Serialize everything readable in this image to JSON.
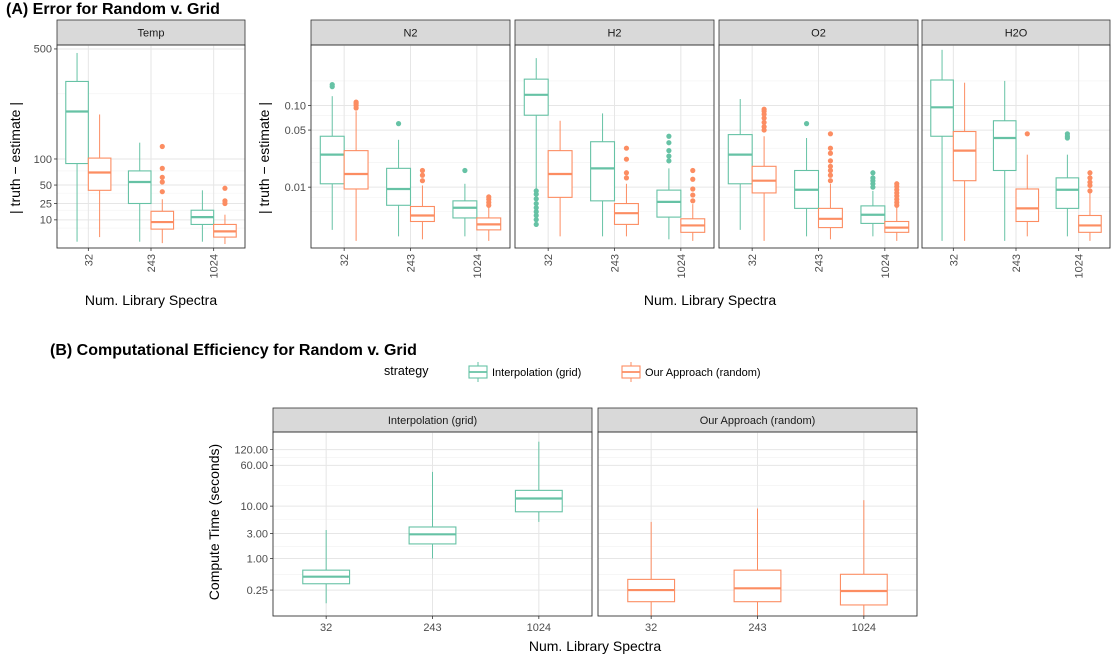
{
  "colors": {
    "grid": "#66c2a5",
    "random": "#fc8d62"
  },
  "sectionA": {
    "title": "(A) Error for Random v. Grid",
    "ylabel": "| truth − estimate |",
    "xlabel": "Num. Library Spectra"
  },
  "sectionB": {
    "title": "(B) Computational Efficiency for Random v. Grid",
    "ylabel": "Compute Time (seconds)",
    "xlabel": "Num. Library Spectra"
  },
  "legend": {
    "title": "strategy",
    "items": [
      {
        "label": "Interpolation (grid)"
      },
      {
        "label": "Our Approach (random)"
      }
    ]
  },
  "chart_data": [
    {
      "type": "box",
      "title": "(A) Error for Random v. Grid",
      "facet": "Temp",
      "ylabel": "| truth − estimate |",
      "xlabel": "Num. Library Spectra",
      "y_scale": "sqrt",
      "ylim": [
        0,
        520
      ],
      "y_ticks": [
        {
          "v": 10,
          "label": "10"
        },
        {
          "v": 25,
          "label": "25"
        },
        {
          "v": 50,
          "label": "50"
        },
        {
          "v": 100,
          "label": "100"
        },
        {
          "v": 500,
          "label": "500"
        }
      ],
      "categories": [
        "32",
        "243",
        "1024"
      ],
      "series": [
        {
          "name": "Interpolation (grid)",
          "boxes": [
            {
              "min": 0.5,
              "q1": 90,
              "median": 235,
              "q3": 350,
              "max": 480,
              "outliers": []
            },
            {
              "min": 0.5,
              "q1": 25,
              "median": 55,
              "q3": 75,
              "max": 140,
              "outliers": []
            },
            {
              "min": 0.5,
              "q1": 7,
              "median": 12,
              "q3": 18,
              "max": 42,
              "outliers": []
            }
          ]
        },
        {
          "name": "Our Approach (random)",
          "boxes": [
            {
              "min": 1.5,
              "q1": 42,
              "median": 72,
              "q3": 102,
              "max": 225,
              "outliers": []
            },
            {
              "min": 0.3,
              "q1": 4.5,
              "median": 8.5,
              "q3": 17,
              "max": 30,
              "outliers": [
                40,
                55,
                63,
                80,
                130
              ]
            },
            {
              "min": 0.2,
              "q1": 1.5,
              "median": 3.5,
              "q3": 7,
              "max": 14,
              "outliers": [
                25,
                28,
                45
              ]
            }
          ]
        }
      ]
    },
    {
      "type": "box",
      "facet": "N2",
      "ylabel": "| truth − estimate |",
      "xlabel": "Num. Library Spectra",
      "y_scale": "log",
      "ylim": [
        0.0018,
        0.55
      ],
      "y_ticks": [
        {
          "v": 0.01,
          "label": "0.01"
        },
        {
          "v": 0.05,
          "label": "0.05"
        },
        {
          "v": 0.1,
          "label": "0.10"
        }
      ],
      "categories": [
        "32",
        "243",
        "1024"
      ],
      "series": [
        {
          "name": "Interpolation (grid)",
          "boxes": [
            {
              "min": 0.003,
              "q1": 0.011,
              "median": 0.025,
              "q3": 0.042,
              "max": 0.13,
              "outliers": [
                0.17,
                0.18
              ]
            },
            {
              "min": 0.0025,
              "q1": 0.006,
              "median": 0.0095,
              "q3": 0.017,
              "max": 0.038,
              "outliers": [
                0.06
              ]
            },
            {
              "min": 0.0025,
              "q1": 0.0042,
              "median": 0.0056,
              "q3": 0.0068,
              "max": 0.011,
              "outliers": [
                0.016
              ]
            }
          ]
        },
        {
          "name": "Our Approach (random)",
          "boxes": [
            {
              "min": 0.0022,
              "q1": 0.0095,
              "median": 0.0145,
              "q3": 0.028,
              "max": 0.085,
              "outliers": [
                0.093,
                0.1,
                0.105,
                0.11
              ]
            },
            {
              "min": 0.0023,
              "q1": 0.0038,
              "median": 0.0045,
              "q3": 0.0058,
              "max": 0.0105,
              "outliers": [
                0.012,
                0.014,
                0.016
              ]
            },
            {
              "min": 0.0022,
              "q1": 0.003,
              "median": 0.0035,
              "q3": 0.0042,
              "max": 0.0058,
              "outliers": [
                0.006,
                0.0065,
                0.0071,
                0.0076
              ]
            }
          ]
        }
      ]
    },
    {
      "type": "box",
      "facet": "H2",
      "ylabel": "| truth − estimate |",
      "xlabel": "Num. Library Spectra",
      "y_scale": "log",
      "ylim": [
        0.0018,
        0.55
      ],
      "y_ticks": [
        {
          "v": 0.01,
          "label": "0.01"
        },
        {
          "v": 0.05,
          "label": "0.05"
        },
        {
          "v": 0.1,
          "label": "0.10"
        }
      ],
      "categories": [
        "32",
        "243",
        "1024"
      ],
      "series": [
        {
          "name": "Interpolation (grid)",
          "boxes": [
            {
              "min": 0.008,
              "q1": 0.076,
              "median": 0.135,
              "q3": 0.21,
              "max": 0.38,
              "outliers": [
                0.0035,
                0.004,
                0.0045,
                0.005,
                0.0056,
                0.0063,
                0.0072,
                0.0082,
                0.009
              ]
            },
            {
              "min": 0.0025,
              "q1": 0.0068,
              "median": 0.017,
              "q3": 0.036,
              "max": 0.08,
              "outliers": []
            },
            {
              "min": 0.0023,
              "q1": 0.0043,
              "median": 0.0066,
              "q3": 0.0092,
              "max": 0.017,
              "outliers": [
                0.021,
                0.024,
                0.028,
                0.035,
                0.042
              ]
            }
          ]
        },
        {
          "name": "Our Approach (random)",
          "boxes": [
            {
              "min": 0.0025,
              "q1": 0.0075,
              "median": 0.0145,
              "q3": 0.028,
              "max": 0.065,
              "outliers": []
            },
            {
              "min": 0.0025,
              "q1": 0.0035,
              "median": 0.0048,
              "q3": 0.0063,
              "max": 0.011,
              "outliers": [
                0.013,
                0.015,
                0.022,
                0.03
              ]
            },
            {
              "min": 0.0022,
              "q1": 0.0028,
              "median": 0.0034,
              "q3": 0.0041,
              "max": 0.0062,
              "outliers": [
                0.0068,
                0.008,
                0.0095,
                0.0125,
                0.016
              ]
            }
          ]
        }
      ]
    },
    {
      "type": "box",
      "facet": "O2",
      "ylabel": "| truth − estimate |",
      "xlabel": "Num. Library Spectra",
      "y_scale": "log",
      "ylim": [
        0.0018,
        0.55
      ],
      "y_ticks": [
        {
          "v": 0.01,
          "label": "0.01"
        },
        {
          "v": 0.05,
          "label": "0.05"
        },
        {
          "v": 0.1,
          "label": "0.10"
        }
      ],
      "categories": [
        "32",
        "243",
        "1024"
      ],
      "series": [
        {
          "name": "Interpolation (grid)",
          "boxes": [
            {
              "min": 0.003,
              "q1": 0.011,
              "median": 0.025,
              "q3": 0.044,
              "max": 0.12,
              "outliers": []
            },
            {
              "min": 0.0025,
              "q1": 0.0055,
              "median": 0.0093,
              "q3": 0.016,
              "max": 0.04,
              "outliers": [
                0.06
              ]
            },
            {
              "min": 0.0025,
              "q1": 0.0036,
              "median": 0.0046,
              "q3": 0.0059,
              "max": 0.009,
              "outliers": [
                0.01,
                0.011,
                0.012,
                0.013,
                0.015
              ]
            }
          ]
        },
        {
          "name": "Our Approach (random)",
          "boxes": [
            {
              "min": 0.0022,
              "q1": 0.0085,
              "median": 0.012,
              "q3": 0.018,
              "max": 0.042,
              "outliers": [
                0.05,
                0.055,
                0.062,
                0.07,
                0.078,
                0.085,
                0.09
              ]
            },
            {
              "min": 0.0023,
              "q1": 0.0032,
              "median": 0.0041,
              "q3": 0.0055,
              "max": 0.011,
              "outliers": [
                0.012,
                0.014,
                0.016,
                0.018,
                0.021,
                0.026,
                0.03,
                0.045
              ]
            },
            {
              "min": 0.0022,
              "q1": 0.0028,
              "median": 0.0032,
              "q3": 0.0038,
              "max": 0.0058,
              "outliers": [
                0.006,
                0.0065,
                0.0071,
                0.0078,
                0.0085,
                0.0093,
                0.0102,
                0.011
              ]
            }
          ]
        }
      ]
    },
    {
      "type": "box",
      "facet": "H2O",
      "ylabel": "| truth − estimate |",
      "xlabel": "Num. Library Spectra",
      "y_scale": "log",
      "ylim": [
        0.0018,
        0.55
      ],
      "y_ticks": [
        {
          "v": 0.01,
          "label": "0.01"
        },
        {
          "v": 0.05,
          "label": "0.05"
        },
        {
          "v": 0.1,
          "label": "0.10"
        }
      ],
      "categories": [
        "32",
        "243",
        "1024"
      ],
      "series": [
        {
          "name": "Interpolation (grid)",
          "boxes": [
            {
              "min": 0.0022,
              "q1": 0.042,
              "median": 0.095,
              "q3": 0.205,
              "max": 0.48,
              "outliers": []
            },
            {
              "min": 0.0022,
              "q1": 0.016,
              "median": 0.04,
              "q3": 0.065,
              "max": 0.2,
              "outliers": []
            },
            {
              "min": 0.0025,
              "q1": 0.0055,
              "median": 0.0093,
              "q3": 0.013,
              "max": 0.025,
              "outliers": [
                0.04,
                0.042,
                0.045
              ]
            }
          ]
        },
        {
          "name": "Our Approach (random)",
          "boxes": [
            {
              "min": 0.0022,
              "q1": 0.012,
              "median": 0.028,
              "q3": 0.048,
              "max": 0.19,
              "outliers": []
            },
            {
              "min": 0.0025,
              "q1": 0.0038,
              "median": 0.0055,
              "q3": 0.0095,
              "max": 0.025,
              "outliers": [
                0.045
              ]
            },
            {
              "min": 0.0022,
              "q1": 0.0028,
              "median": 0.0034,
              "q3": 0.0045,
              "max": 0.0085,
              "outliers": [
                0.009,
                0.0105,
                0.0115,
                0.013,
                0.015
              ]
            }
          ]
        }
      ]
    },
    {
      "type": "box",
      "title": "(B) Computational Efficiency for Random v. Grid",
      "facet": "Interpolation (grid)",
      "ylabel": "Compute Time (seconds)",
      "xlabel": "Num. Library Spectra",
      "y_scale": "log",
      "ylim": [
        0.08,
        260
      ],
      "y_ticks": [
        {
          "v": 0.25,
          "label": "0.25"
        },
        {
          "v": 1,
          "label": "1.00"
        },
        {
          "v": 3,
          "label": "3.00"
        },
        {
          "v": 10,
          "label": "10.00"
        },
        {
          "v": 60,
          "label": "60.00"
        },
        {
          "v": 120,
          "label": "120.00"
        }
      ],
      "categories": [
        "32",
        "243",
        "1024"
      ],
      "series": [
        {
          "name": "Interpolation (grid)",
          "boxes": [
            {
              "min": 0.14,
              "q1": 0.33,
              "median": 0.45,
              "q3": 0.6,
              "max": 3.5,
              "outliers": []
            },
            {
              "min": 1.0,
              "q1": 1.9,
              "median": 2.9,
              "q3": 4.0,
              "max": 45,
              "outliers": []
            },
            {
              "min": 5.0,
              "q1": 7.8,
              "median": 14.0,
              "q3": 20.0,
              "max": 170,
              "outliers": []
            }
          ]
        }
      ]
    },
    {
      "type": "box",
      "facet": "Our Approach (random)",
      "ylabel": "Compute Time (seconds)",
      "xlabel": "Num. Library Spectra",
      "y_scale": "log",
      "ylim": [
        0.08,
        260
      ],
      "y_ticks": [
        {
          "v": 0.25,
          "label": "0.25"
        },
        {
          "v": 1,
          "label": "1.00"
        },
        {
          "v": 3,
          "label": "3.00"
        },
        {
          "v": 10,
          "label": "10.00"
        },
        {
          "v": 60,
          "label": "60.00"
        },
        {
          "v": 120,
          "label": "120.00"
        }
      ],
      "categories": [
        "32",
        "243",
        "1024"
      ],
      "series": [
        {
          "name": "Our Approach (random)",
          "boxes": [
            {
              "min": 0.07,
              "q1": 0.15,
              "median": 0.25,
              "q3": 0.4,
              "max": 5.0,
              "outliers": []
            },
            {
              "min": 0.06,
              "q1": 0.15,
              "median": 0.27,
              "q3": 0.6,
              "max": 9.0,
              "outliers": []
            },
            {
              "min": 0.06,
              "q1": 0.13,
              "median": 0.24,
              "q3": 0.5,
              "max": 13.0,
              "outliers": []
            }
          ]
        }
      ]
    }
  ]
}
